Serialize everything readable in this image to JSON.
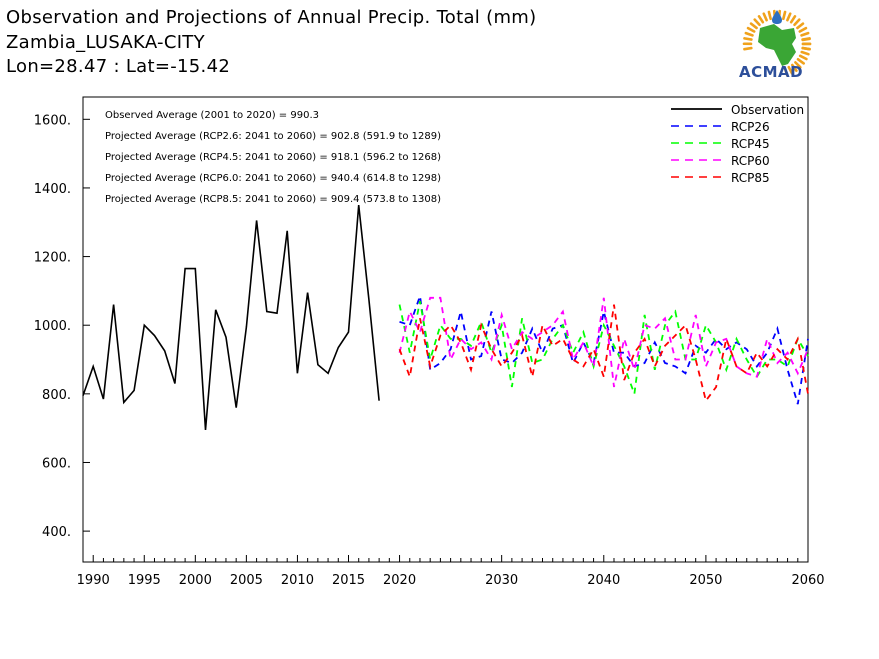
{
  "header": {
    "title": "Observation and Projections of Annual Precip. Total (mm)",
    "location": "Zambia_LUSAKA-CITY",
    "coords": "Lon=28.47 : Lat=-15.42"
  },
  "logo": {
    "text": "ACMAD",
    "colors": {
      "africa": "#3aa635",
      "sun": "#f0a21c",
      "drop": "#2d6fc0",
      "text": "#2d4f9a"
    }
  },
  "stats": [
    "Observed Average (2001 to 2020) = 990.3",
    "Projected Average (RCP2.6: 2041 to 2060) = 902.8 (591.9 to 1289)",
    "Projected Average (RCP4.5: 2041 to 2060) = 918.1 (596.2 to 1268)",
    "Projected Average (RCP6.0: 2041 to 2060) = 940.4 (614.8 to 1298)",
    "Projected Average (RCP8.5: 2041 to 2060) = 909.4 (573.8 to 1308)"
  ],
  "chart_data": {
    "type": "line",
    "xlim": [
      1989,
      2060
    ],
    "ylim": [
      310,
      1665
    ],
    "x_ticks": [
      {
        "value": 1990,
        "label": "1990"
      },
      {
        "value": 1995,
        "label": "1995"
      },
      {
        "value": 2000,
        "label": "2000"
      },
      {
        "value": 2005,
        "label": "2005"
      },
      {
        "value": 2010,
        "label": "2010"
      },
      {
        "value": 2015,
        "label": "2015"
      },
      {
        "value": 2020,
        "label": "2020"
      },
      {
        "value": 2030,
        "label": "2030"
      },
      {
        "value": 2040,
        "label": "2040"
      },
      {
        "value": 2050,
        "label": "2050"
      },
      {
        "value": 2060,
        "label": "2060"
      }
    ],
    "y_ticks": [
      {
        "value": 400,
        "label": "400."
      },
      {
        "value": 600,
        "label": "600."
      },
      {
        "value": 800,
        "label": "800."
      },
      {
        "value": 1000,
        "label": "1000."
      },
      {
        "value": 1200,
        "label": "1200."
      },
      {
        "value": 1400,
        "label": "1400."
      },
      {
        "value": 1600,
        "label": "1600."
      }
    ],
    "legend_position": "top-right",
    "series": [
      {
        "name": "Observation",
        "color": "#000000",
        "dashed": false,
        "x": [
          1989,
          1990,
          1991,
          1992,
          1993,
          1994,
          1995,
          1996,
          1997,
          1998,
          1999,
          2000,
          2001,
          2002,
          2003,
          2004,
          2005,
          2006,
          2007,
          2008,
          2009,
          2010,
          2011,
          2012,
          2013,
          2014,
          2015,
          2016,
          2017,
          2018,
          2019,
          2020
        ],
        "values": [
          795,
          880,
          785,
          1060,
          775,
          810,
          1000,
          970,
          925,
          830,
          1165,
          1165,
          695,
          1045,
          965,
          760,
          995,
          1305,
          1040,
          1035,
          1275,
          860,
          1095,
          885,
          860,
          935,
          980,
          1350,
          1075,
          780,
          null,
          null
        ]
      },
      {
        "name": "RCP26",
        "color": "#0000ff",
        "dashed": true,
        "x": [
          2020,
          2021,
          2022,
          2023,
          2024,
          2025,
          2026,
          2027,
          2028,
          2029,
          2030,
          2031,
          2032,
          2033,
          2034,
          2035,
          2036,
          2037,
          2038,
          2039,
          2040,
          2041,
          2042,
          2043,
          2044,
          2045,
          2046,
          2047,
          2048,
          2049,
          2050,
          2051,
          2052,
          2053,
          2054,
          2055,
          2056,
          2057,
          2058,
          2059,
          2060
        ],
        "values": [
          1010,
          1000,
          1085,
          870,
          890,
          930,
          1040,
          900,
          910,
          1040,
          900,
          890,
          920,
          990,
          920,
          990,
          1000,
          890,
          950,
          890,
          1040,
          920,
          920,
          880,
          890,
          950,
          890,
          880,
          860,
          940,
          920,
          960,
          930,
          950,
          930,
          880,
          920,
          990,
          870,
          770,
          960
        ]
      },
      {
        "name": "RCP45",
        "color": "#00ff00",
        "dashed": true,
        "x": [
          2020,
          2021,
          2022,
          2023,
          2024,
          2025,
          2026,
          2027,
          2028,
          2029,
          2030,
          2031,
          2032,
          2033,
          2034,
          2035,
          2036,
          2037,
          2038,
          2039,
          2040,
          2041,
          2042,
          2043,
          2044,
          2045,
          2046,
          2047,
          2048,
          2049,
          2050,
          2051,
          2052,
          2053,
          2054,
          2055,
          2056,
          2057,
          2058,
          2059,
          2060
        ],
        "values": [
          1060,
          920,
          1070,
          900,
          1000,
          960,
          960,
          940,
          1010,
          920,
          1000,
          820,
          1020,
          890,
          900,
          960,
          1000,
          920,
          980,
          880,
          1000,
          940,
          880,
          800,
          1030,
          870,
          1000,
          1040,
          900,
          900,
          1000,
          950,
          870,
          960,
          900,
          850,
          900,
          900,
          880,
          960,
          910
        ]
      },
      {
        "name": "RCP60",
        "color": "#ff00ff",
        "dashed": true,
        "x": [
          2020,
          2021,
          2022,
          2023,
          2024,
          2025,
          2026,
          2027,
          2028,
          2029,
          2030,
          2031,
          2032,
          2033,
          2034,
          2035,
          2036,
          2037,
          2038,
          2039,
          2040,
          2041,
          2042,
          2043,
          2044,
          2045,
          2046,
          2047,
          2048,
          2049,
          2050,
          2051,
          2052,
          2053,
          2054,
          2055,
          2056,
          2057,
          2058,
          2059,
          2060
        ],
        "values": [
          920,
          1040,
          980,
          1080,
          1080,
          900,
          960,
          930,
          950,
          900,
          1030,
          930,
          980,
          960,
          980,
          1000,
          1040,
          900,
          950,
          880,
          1080,
          820,
          960,
          870,
          1000,
          990,
          1020,
          900,
          900,
          1030,
          880,
          950,
          960,
          880,
          860,
          850,
          960,
          890,
          920,
          860,
          930
        ]
      },
      {
        "name": "RCP85",
        "color": "#ff0000",
        "dashed": true,
        "x": [
          2020,
          2021,
          2022,
          2023,
          2024,
          2025,
          2026,
          2027,
          2028,
          2029,
          2030,
          2031,
          2032,
          2033,
          2034,
          2035,
          2036,
          2037,
          2038,
          2039,
          2040,
          2041,
          2042,
          2043,
          2044,
          2045,
          2046,
          2047,
          2048,
          2049,
          2050,
          2051,
          2052,
          2053,
          2054,
          2055,
          2056,
          2057,
          2058,
          2059,
          2060
        ],
        "values": [
          930,
          850,
          1020,
          880,
          970,
          1000,
          950,
          870,
          1000,
          930,
          880,
          920,
          970,
          850,
          1000,
          940,
          960,
          900,
          880,
          930,
          850,
          1060,
          840,
          920,
          960,
          880,
          940,
          970,
          1000,
          900,
          780,
          820,
          960,
          880,
          860,
          920,
          880,
          930,
          900,
          960,
          800
        ]
      }
    ]
  }
}
